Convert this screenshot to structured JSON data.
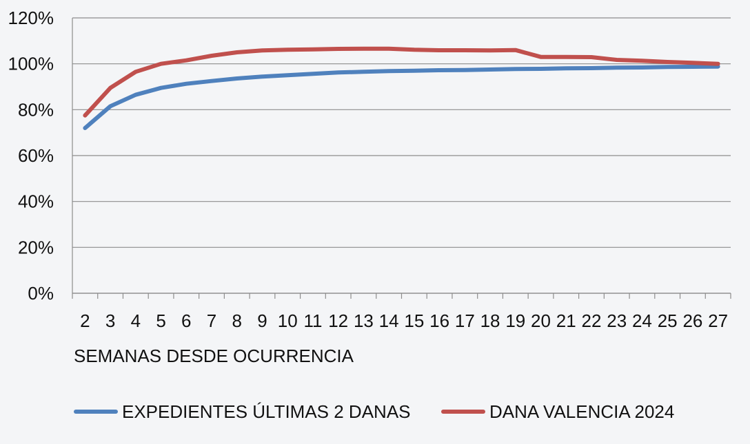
{
  "chart_data": {
    "type": "line",
    "categories": [
      "2",
      "3",
      "4",
      "5",
      "6",
      "7",
      "8",
      "9",
      "10",
      "11",
      "12",
      "13",
      "14",
      "15",
      "16",
      "17",
      "18",
      "19",
      "20",
      "21",
      "22",
      "23",
      "24",
      "25",
      "26",
      "27"
    ],
    "series": [
      {
        "name": "EXPEDIENTES ÚLTIMAS 2 DANAS",
        "color": "#4f81bd",
        "values": [
          72,
          81.5,
          86.5,
          89.5,
          91.3,
          92.5,
          93.6,
          94.4,
          95.0,
          95.6,
          96.2,
          96.5,
          96.8,
          97.0,
          97.2,
          97.3,
          97.5,
          97.7,
          97.8,
          98.0,
          98.1,
          98.3,
          98.4,
          98.6,
          98.7,
          98.8
        ]
      },
      {
        "name": "DANA VALENCIA 2024",
        "color": "#c0504d",
        "values": [
          77.5,
          89.5,
          96.5,
          100.0,
          101.5,
          103.5,
          105.0,
          105.8,
          106.1,
          106.3,
          106.5,
          106.6,
          106.6,
          106.1,
          105.9,
          105.9,
          105.8,
          106.0,
          103.0,
          103.0,
          102.9,
          101.7,
          101.3,
          100.8,
          100.4,
          100.0
        ]
      }
    ],
    "yticks": [
      "0%",
      "20%",
      "40%",
      "60%",
      "80%",
      "100%",
      "120%"
    ],
    "ylim": [
      0,
      120
    ],
    "xlabel": "SEMANAS DESDE OCURRENCIA",
    "ylabel": "",
    "title": "",
    "grid": true,
    "legend_position": "bottom"
  }
}
